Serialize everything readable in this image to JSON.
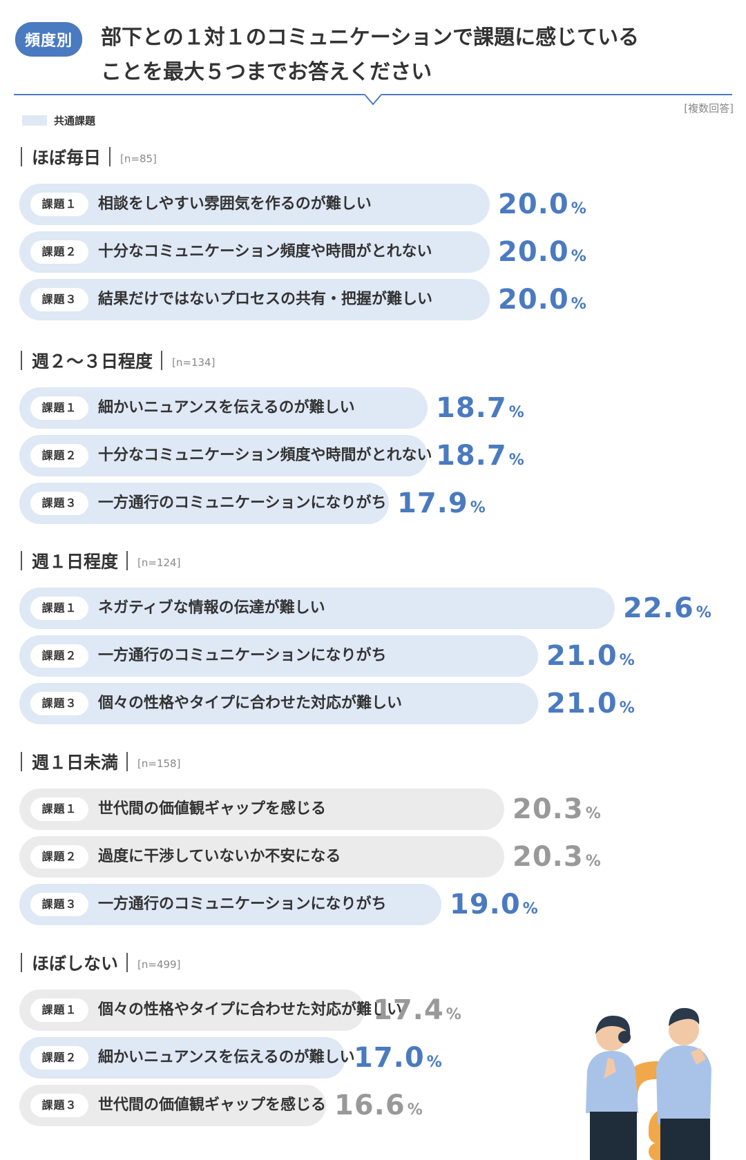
{
  "header": {
    "frequency_tag": "頻度別",
    "title_line1": "部下との１対１のコミュニケーションで課題に感じている",
    "title_line2": "ことを最大５つまでお答えください",
    "multi_answer_note": "[複数回答]"
  },
  "legend": {
    "label": "共通課題",
    "swatch_color": "#dfe8f5"
  },
  "colors": {
    "accent": "#4a7ac0",
    "common_bar": "#dfe8f5",
    "other_bar": "#ebebeb",
    "grey_value": "#999999"
  },
  "chart_data": {
    "type": "bar",
    "orientation": "horizontal",
    "unit": "%",
    "groups": [
      {
        "name": "ほぼ毎日",
        "n": "[n=85]",
        "items": [
          {
            "rank": "課題１",
            "label": "相談をしやすい雰囲気を作るのが難しい",
            "value": 20.0,
            "common": true
          },
          {
            "rank": "課題２",
            "label": "十分なコミュニケーション頻度や時間がとれない",
            "value": 20.0,
            "common": true
          },
          {
            "rank": "課題３",
            "label": "結果だけではないプロセスの共有・把握が難しい",
            "value": 20.0,
            "common": true
          }
        ]
      },
      {
        "name": "週２〜３日程度",
        "n": "[n=134]",
        "items": [
          {
            "rank": "課題１",
            "label": "細かいニュアンスを伝えるのが難しい",
            "value": 18.7,
            "common": true
          },
          {
            "rank": "課題２",
            "label": "十分なコミュニケーション頻度や時間がとれない",
            "value": 18.7,
            "common": true
          },
          {
            "rank": "課題３",
            "label": "一方通行のコミュニケーションになりがち",
            "value": 17.9,
            "common": true
          }
        ]
      },
      {
        "name": "週１日程度",
        "n": "[n=124]",
        "items": [
          {
            "rank": "課題１",
            "label": "ネガティブな情報の伝達が難しい",
            "value": 22.6,
            "common": true
          },
          {
            "rank": "課題２",
            "label": "一方通行のコミュニケーションになりがち",
            "value": 21.0,
            "common": true
          },
          {
            "rank": "課題３",
            "label": "個々の性格やタイプに合わせた対応が難しい",
            "value": 21.0,
            "common": true
          }
        ]
      },
      {
        "name": "週１日未満",
        "n": "[n=158]",
        "items": [
          {
            "rank": "課題１",
            "label": "世代間の価値観ギャップを感じる",
            "value": 20.3,
            "common": false
          },
          {
            "rank": "課題２",
            "label": "過度に干渉していないか不安になる",
            "value": 20.3,
            "common": false
          },
          {
            "rank": "課題３",
            "label": "一方通行のコミュニケーションになりがち",
            "value": 19.0,
            "common": true
          }
        ]
      },
      {
        "name": "ほぼしない",
        "n": "[n=499]",
        "items": [
          {
            "rank": "課題１",
            "label": "個々の性格やタイプに合わせた対応が難しい",
            "value": 17.4,
            "common": false
          },
          {
            "rank": "課題２",
            "label": "細かいニュアンスを伝えるのが難しい",
            "value": 17.0,
            "common": true
          },
          {
            "rank": "課題３",
            "label": "世代間の価値観ギャップを感じる",
            "value": 16.6,
            "common": false
          }
        ]
      }
    ]
  }
}
